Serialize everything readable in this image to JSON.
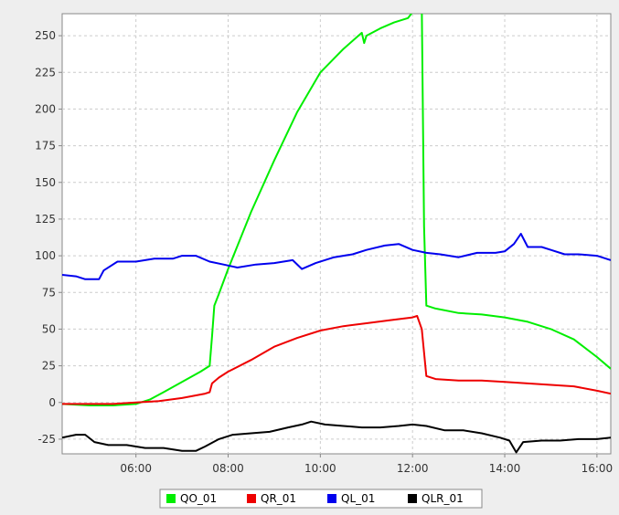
{
  "chart_data": {
    "type": "line",
    "title": "",
    "xlabel": "",
    "ylabel": "",
    "xlim": [
      4.4,
      16.3
    ],
    "ylim": [
      -35,
      265
    ],
    "x_ticks": [
      {
        "value": 6,
        "label": "06:00"
      },
      {
        "value": 8,
        "label": "08:00"
      },
      {
        "value": 10,
        "label": "10:00"
      },
      {
        "value": 12,
        "label": "12:00"
      },
      {
        "value": 14,
        "label": "14:00"
      },
      {
        "value": 16,
        "label": "16:00"
      }
    ],
    "y_ticks": [
      -25,
      0,
      25,
      50,
      75,
      100,
      125,
      150,
      175,
      200,
      225,
      250
    ],
    "grid": true,
    "legend_position": "bottom-center",
    "series": [
      {
        "name": "QO_01",
        "color": "#00ee00",
        "points": [
          [
            4.4,
            -1
          ],
          [
            5.0,
            -2
          ],
          [
            5.5,
            -2
          ],
          [
            6.0,
            -1
          ],
          [
            6.3,
            2
          ],
          [
            6.6,
            7
          ],
          [
            7.0,
            14
          ],
          [
            7.4,
            21
          ],
          [
            7.6,
            25
          ],
          [
            7.65,
            45
          ],
          [
            7.7,
            66
          ],
          [
            7.8,
            74
          ],
          [
            8.0,
            91
          ],
          [
            8.5,
            130
          ],
          [
            9.0,
            165
          ],
          [
            9.5,
            198
          ],
          [
            10.0,
            225
          ],
          [
            10.5,
            241
          ],
          [
            10.9,
            252
          ],
          [
            10.95,
            245
          ],
          [
            11.0,
            250
          ],
          [
            11.3,
            255
          ],
          [
            11.6,
            259
          ],
          [
            11.9,
            262
          ],
          [
            12.0,
            266
          ],
          [
            12.05,
            270
          ],
          [
            12.2,
            270
          ],
          [
            12.25,
            120
          ],
          [
            12.3,
            66
          ],
          [
            12.5,
            64
          ],
          [
            13.0,
            61
          ],
          [
            13.5,
            60
          ],
          [
            14.0,
            58
          ],
          [
            14.5,
            55
          ],
          [
            15.0,
            50
          ],
          [
            15.5,
            43
          ],
          [
            16.0,
            31
          ],
          [
            16.3,
            23
          ]
        ]
      },
      {
        "name": "QR_01",
        "color": "#ee0000",
        "points": [
          [
            4.4,
            -1
          ],
          [
            5.0,
            -1
          ],
          [
            5.5,
            -1
          ],
          [
            6.0,
            0
          ],
          [
            6.5,
            1
          ],
          [
            7.0,
            3
          ],
          [
            7.5,
            6
          ],
          [
            7.6,
            7
          ],
          [
            7.65,
            13
          ],
          [
            7.8,
            17
          ],
          [
            8.0,
            21
          ],
          [
            8.5,
            29
          ],
          [
            9.0,
            38
          ],
          [
            9.5,
            44
          ],
          [
            10.0,
            49
          ],
          [
            10.5,
            52
          ],
          [
            11.0,
            54
          ],
          [
            11.5,
            56
          ],
          [
            12.0,
            58
          ],
          [
            12.1,
            59
          ],
          [
            12.2,
            50
          ],
          [
            12.3,
            18
          ],
          [
            12.5,
            16
          ],
          [
            13.0,
            15
          ],
          [
            13.5,
            15
          ],
          [
            14.0,
            14
          ],
          [
            14.5,
            13
          ],
          [
            15.0,
            12
          ],
          [
            15.5,
            11
          ],
          [
            16.0,
            8
          ],
          [
            16.3,
            6
          ]
        ]
      },
      {
        "name": "QL_01",
        "color": "#0000ee",
        "points": [
          [
            4.4,
            87
          ],
          [
            4.7,
            86
          ],
          [
            4.9,
            84
          ],
          [
            5.2,
            84
          ],
          [
            5.3,
            90
          ],
          [
            5.6,
            96
          ],
          [
            6.0,
            96
          ],
          [
            6.4,
            98
          ],
          [
            6.8,
            98
          ],
          [
            7.0,
            100
          ],
          [
            7.3,
            100
          ],
          [
            7.6,
            96
          ],
          [
            7.9,
            94
          ],
          [
            8.2,
            92
          ],
          [
            8.6,
            94
          ],
          [
            9.0,
            95
          ],
          [
            9.4,
            97
          ],
          [
            9.6,
            91
          ],
          [
            9.9,
            95
          ],
          [
            10.3,
            99
          ],
          [
            10.7,
            101
          ],
          [
            11.0,
            104
          ],
          [
            11.4,
            107
          ],
          [
            11.7,
            108
          ],
          [
            12.0,
            104
          ],
          [
            12.3,
            102
          ],
          [
            12.6,
            101
          ],
          [
            13.0,
            99
          ],
          [
            13.4,
            102
          ],
          [
            13.8,
            102
          ],
          [
            14.0,
            103
          ],
          [
            14.2,
            108
          ],
          [
            14.35,
            115
          ],
          [
            14.5,
            106
          ],
          [
            14.8,
            106
          ],
          [
            15.0,
            104
          ],
          [
            15.3,
            101
          ],
          [
            15.6,
            101
          ],
          [
            16.0,
            100
          ],
          [
            16.3,
            97
          ]
        ]
      },
      {
        "name": "QLR_01",
        "color": "#000000",
        "points": [
          [
            4.4,
            -24
          ],
          [
            4.7,
            -22
          ],
          [
            4.9,
            -22
          ],
          [
            5.1,
            -27
          ],
          [
            5.4,
            -29
          ],
          [
            5.8,
            -29
          ],
          [
            6.2,
            -31
          ],
          [
            6.6,
            -31
          ],
          [
            7.0,
            -33
          ],
          [
            7.3,
            -33
          ],
          [
            7.5,
            -30
          ],
          [
            7.8,
            -25
          ],
          [
            8.1,
            -22
          ],
          [
            8.5,
            -21
          ],
          [
            8.9,
            -20
          ],
          [
            9.3,
            -17
          ],
          [
            9.6,
            -15
          ],
          [
            9.8,
            -13
          ],
          [
            10.1,
            -15
          ],
          [
            10.5,
            -16
          ],
          [
            10.9,
            -17
          ],
          [
            11.3,
            -17
          ],
          [
            11.7,
            -16
          ],
          [
            12.0,
            -15
          ],
          [
            12.3,
            -16
          ],
          [
            12.7,
            -19
          ],
          [
            13.1,
            -19
          ],
          [
            13.5,
            -21
          ],
          [
            13.9,
            -24
          ],
          [
            14.1,
            -26
          ],
          [
            14.25,
            -34
          ],
          [
            14.4,
            -27
          ],
          [
            14.8,
            -26
          ],
          [
            15.2,
            -26
          ],
          [
            15.6,
            -25
          ],
          [
            16.0,
            -25
          ],
          [
            16.3,
            -24
          ]
        ]
      }
    ]
  }
}
